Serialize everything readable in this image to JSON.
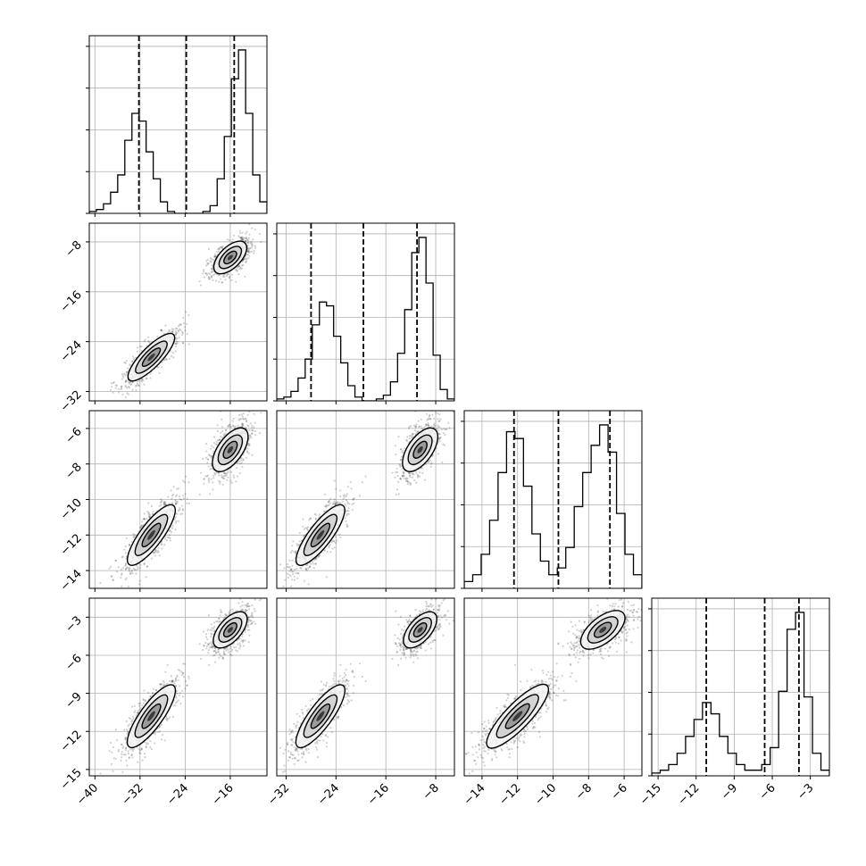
{
  "chart_data": {
    "type": "corner",
    "title": "",
    "grid": true,
    "colors": {
      "line": "#000000",
      "grid": "#b0b0b0",
      "points": "#000000"
    },
    "variables": [
      {
        "range": [
          -41,
          -9.5
        ],
        "ticks": [
          -40,
          -32,
          -24,
          -16
        ],
        "tick_labels": [
          "−40",
          "−32",
          "−24",
          "−16"
        ],
        "quantiles": [
          -32.2,
          -23.8,
          -15.3
        ],
        "histogram": [
          1,
          2,
          5,
          11,
          20,
          38,
          52,
          48,
          32,
          18,
          6,
          1,
          0,
          0,
          0,
          0,
          1,
          4,
          18,
          40,
          70,
          85,
          52,
          20,
          6
        ]
      },
      {
        "range": [
          -33.5,
          -5
        ],
        "ticks": [
          -32,
          -24,
          -16,
          -8
        ],
        "tick_labels": [
          "−32",
          "−24",
          "−16",
          "−8"
        ],
        "quantiles": [
          -28.0,
          -19.6,
          -11.0
        ],
        "histogram": [
          1,
          2,
          5,
          12,
          22,
          40,
          52,
          50,
          34,
          20,
          8,
          2,
          0,
          0,
          1,
          3,
          10,
          25,
          48,
          78,
          86,
          62,
          24,
          6,
          1
        ]
      },
      {
        "range": [
          -15,
          -5
        ],
        "ticks": [
          -14,
          -12,
          -10,
          -8,
          -6
        ],
        "tick_labels": [
          "−14",
          "−12",
          "−10",
          "−8",
          "−6"
        ],
        "quantiles": [
          -12.2,
          -9.7,
          -6.8
        ],
        "histogram": [
          2,
          4,
          10,
          20,
          34,
          46,
          44,
          30,
          16,
          8,
          4,
          6,
          12,
          24,
          34,
          42,
          48,
          40,
          22,
          10,
          4
        ]
      },
      {
        "range": [
          -15.5,
          -1.5
        ],
        "ticks": [
          -15,
          -12,
          -9,
          -6,
          -3
        ],
        "tick_labels": [
          "−15",
          "−12",
          "−9",
          "−6",
          "−3"
        ],
        "quantiles": [
          -11.2,
          -6.6,
          -3.9
        ],
        "histogram": [
          1,
          2,
          4,
          8,
          14,
          20,
          26,
          22,
          14,
          8,
          4,
          2,
          2,
          4,
          10,
          30,
          52,
          58,
          28,
          8,
          2
        ]
      }
    ],
    "clusters": [
      {
        "center": [
          -30,
          -26.5,
          -12.0,
          -10.8
        ],
        "std": [
          2.6,
          2.4,
          1.1,
          1.6
        ],
        "corr": 0.9,
        "weight": 0.5
      },
      {
        "center": [
          -16,
          -10.5,
          -7.2,
          -4.0
        ],
        "std": [
          1.8,
          1.6,
          0.8,
          0.9
        ],
        "corr": 0.75,
        "weight": 0.5
      }
    ],
    "n_samples": 1400
  }
}
